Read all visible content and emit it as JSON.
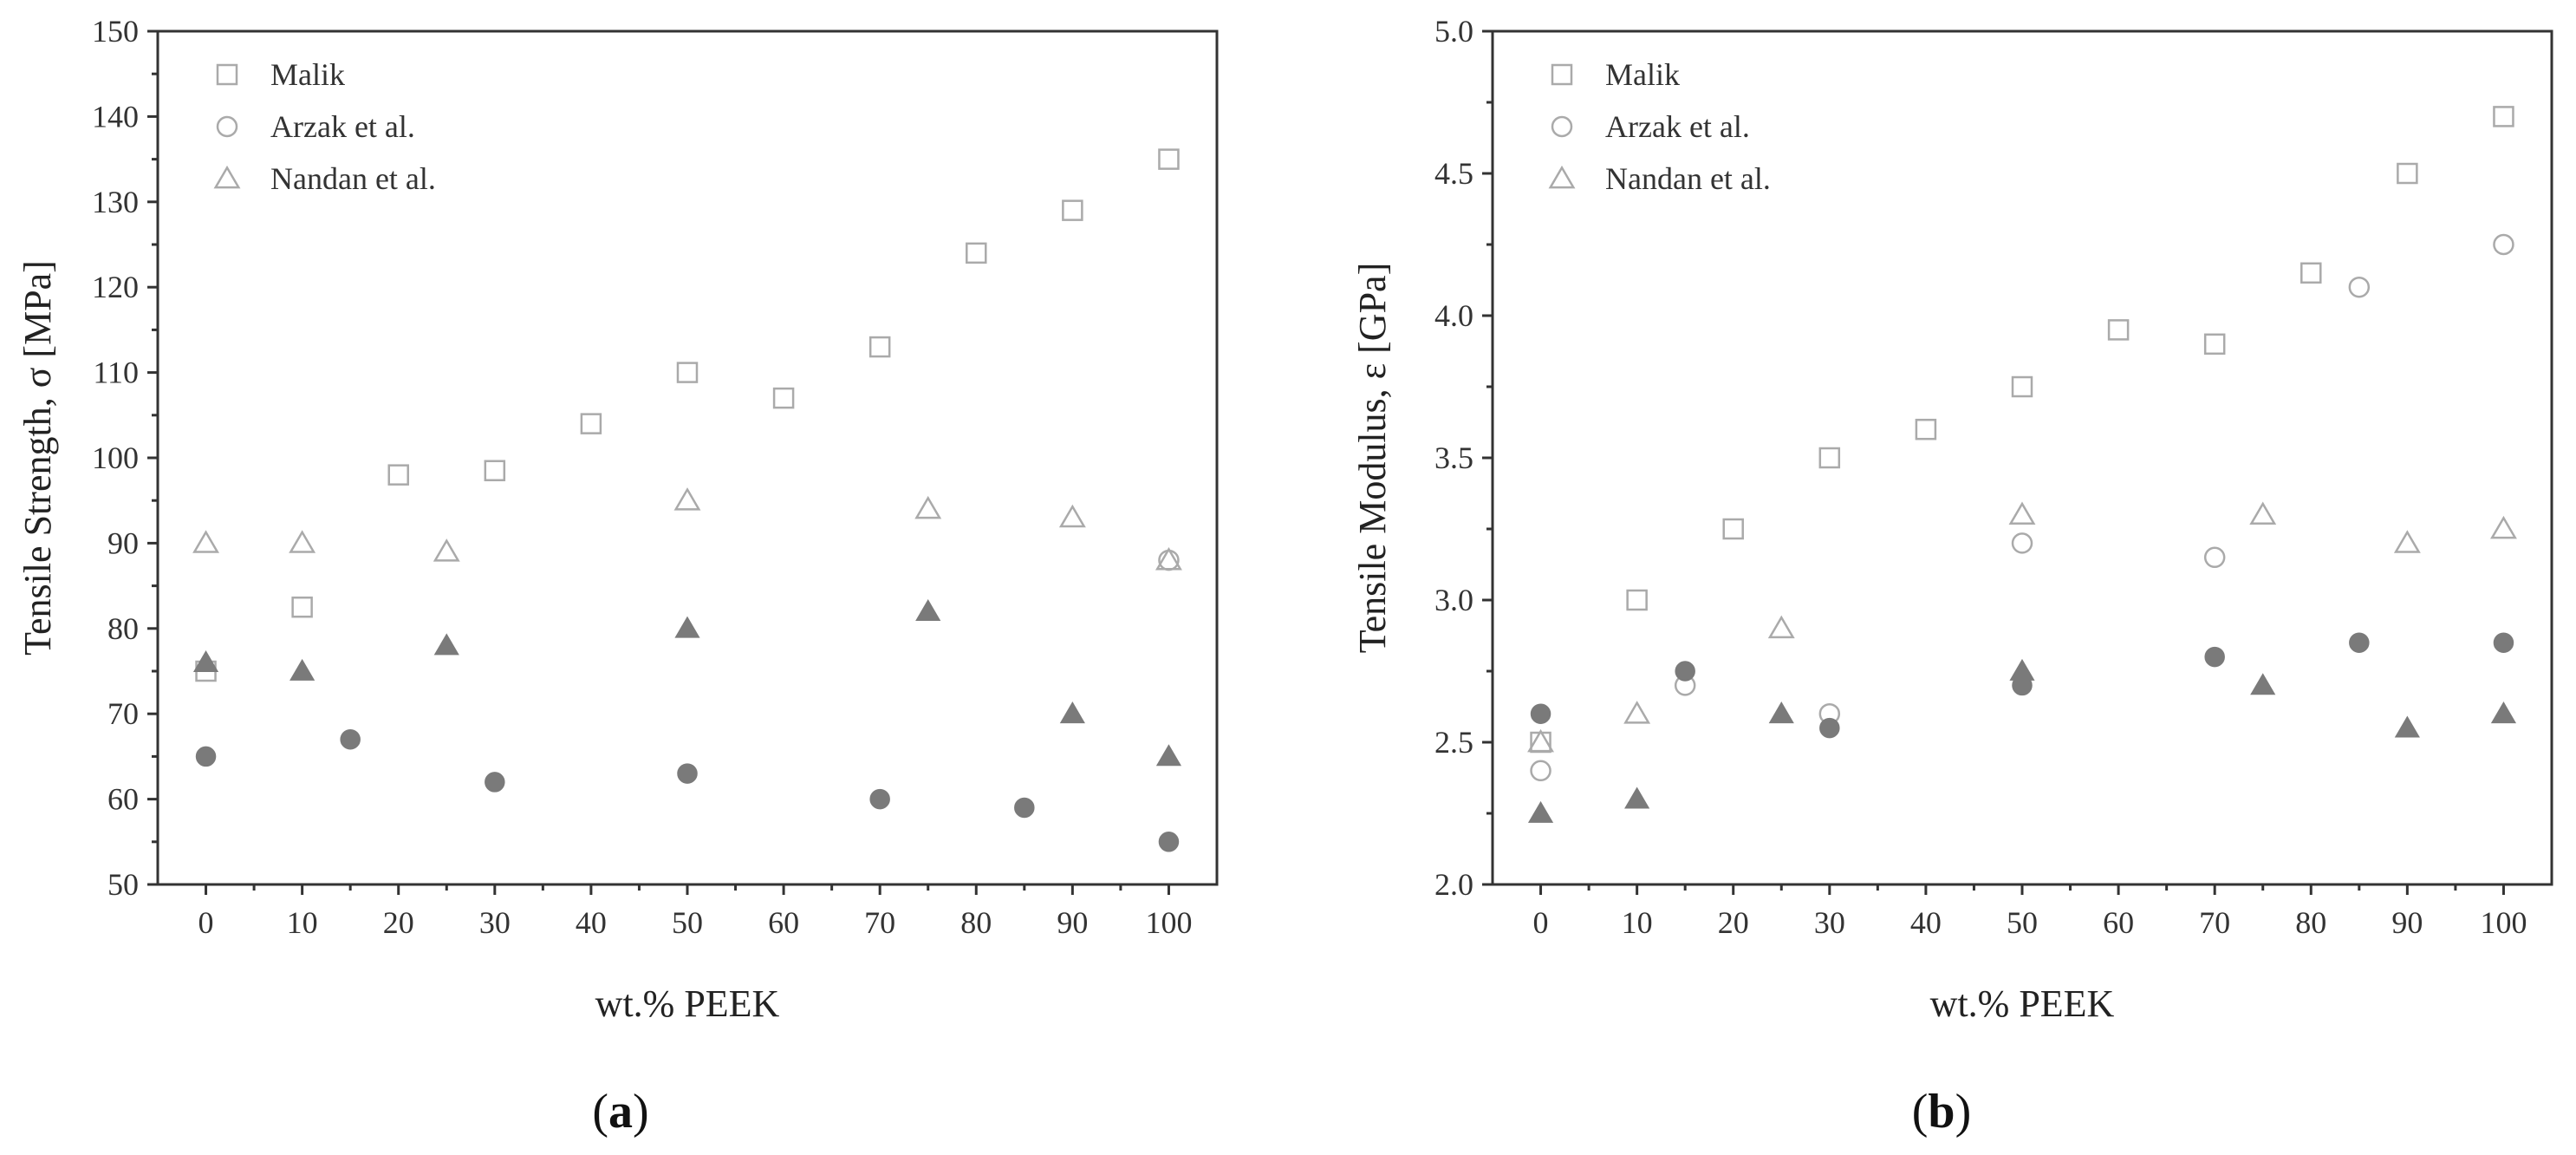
{
  "chart_data": [
    {
      "type": "scatter",
      "panel_label": {
        "open": "(",
        "letter": "a",
        "close": ")"
      },
      "xlabel": "wt.% PEEK",
      "ylabel": "Tensile Strength, σ [MPa]",
      "xlim": [
        -5,
        105
      ],
      "ylim": [
        50,
        150
      ],
      "xticks": [
        0,
        10,
        20,
        30,
        40,
        50,
        60,
        70,
        80,
        90,
        100
      ],
      "yticks": [
        50,
        60,
        70,
        80,
        90,
        100,
        110,
        120,
        130,
        140,
        150
      ],
      "legend_position": "top-left",
      "series": [
        {
          "name": "Malik",
          "marker": "square",
          "filled": false,
          "color": "#aaaaaa",
          "x": [
            0,
            10,
            20,
            30,
            40,
            50,
            60,
            70,
            80,
            90,
            100
          ],
          "y": [
            75,
            82.5,
            98,
            98.5,
            104,
            110,
            107,
            113,
            124,
            129,
            135
          ]
        },
        {
          "name": "Arzak et al.",
          "marker": "circle",
          "filled": false,
          "color": "#aaaaaa",
          "x": [
            100
          ],
          "y": [
            88
          ]
        },
        {
          "name": "Nandan et al.",
          "marker": "triangle",
          "filled": false,
          "color": "#aaaaaa",
          "x": [
            0,
            10,
            25,
            50,
            75,
            90,
            100
          ],
          "y": [
            90,
            90,
            89,
            95,
            94,
            93,
            88
          ]
        },
        {
          "marker": "circle",
          "filled": true,
          "color": "#7a7a7a",
          "x": [
            0,
            15,
            30,
            50,
            70,
            85,
            100
          ],
          "y": [
            65,
            67,
            62,
            63,
            60,
            59,
            55
          ]
        },
        {
          "marker": "triangle",
          "filled": true,
          "color": "#7a7a7a",
          "x": [
            0,
            10,
            25,
            50,
            75,
            90,
            100
          ],
          "y": [
            76,
            75,
            78,
            80,
            82,
            70,
            65
          ]
        }
      ]
    },
    {
      "type": "scatter",
      "panel_label": {
        "open": "(",
        "letter": "b",
        "close": ")"
      },
      "xlabel": "wt.% PEEK",
      "ylabel": "Tensile Modulus, ε [GPa]",
      "xlim": [
        -5,
        105
      ],
      "ylim": [
        2.0,
        5.0
      ],
      "xticks": [
        0,
        10,
        20,
        30,
        40,
        50,
        60,
        70,
        80,
        90,
        100
      ],
      "yticks": [
        2.0,
        2.5,
        3.0,
        3.5,
        4.0,
        4.5,
        5.0
      ],
      "ytick_labels": [
        "2.0",
        "2.5",
        "3.0",
        "3.5",
        "4.0",
        "4.5",
        "5.0"
      ],
      "legend_position": "top-left",
      "series": [
        {
          "name": "Malik",
          "marker": "square",
          "filled": false,
          "color": "#aaaaaa",
          "x": [
            0,
            10,
            20,
            30,
            40,
            50,
            60,
            70,
            80,
            90,
            100
          ],
          "y": [
            2.5,
            3.0,
            3.25,
            3.5,
            3.6,
            3.75,
            3.95,
            3.9,
            4.15,
            4.5,
            4.7
          ]
        },
        {
          "name": "Arzak et al.",
          "marker": "circle",
          "filled": false,
          "color": "#aaaaaa",
          "x": [
            0,
            15,
            30,
            50,
            70,
            85,
            100
          ],
          "y": [
            2.4,
            2.7,
            2.6,
            3.2,
            3.15,
            4.1,
            4.25
          ]
        },
        {
          "name": "Nandan et al.",
          "marker": "triangle",
          "filled": false,
          "color": "#aaaaaa",
          "x": [
            0,
            10,
            25,
            50,
            75,
            90,
            100
          ],
          "y": [
            2.5,
            2.6,
            2.9,
            3.3,
            3.3,
            3.2,
            3.25
          ]
        },
        {
          "marker": "circle",
          "filled": true,
          "color": "#7a7a7a",
          "x": [
            0,
            15,
            30,
            50,
            70,
            85,
            100
          ],
          "y": [
            2.6,
            2.75,
            2.55,
            2.7,
            2.8,
            2.85,
            2.85
          ]
        },
        {
          "marker": "triangle",
          "filled": true,
          "color": "#7a7a7a",
          "x": [
            0,
            10,
            25,
            50,
            75,
            90,
            100
          ],
          "y": [
            2.25,
            2.3,
            2.6,
            2.75,
            2.7,
            2.55,
            2.6
          ]
        }
      ]
    }
  ]
}
